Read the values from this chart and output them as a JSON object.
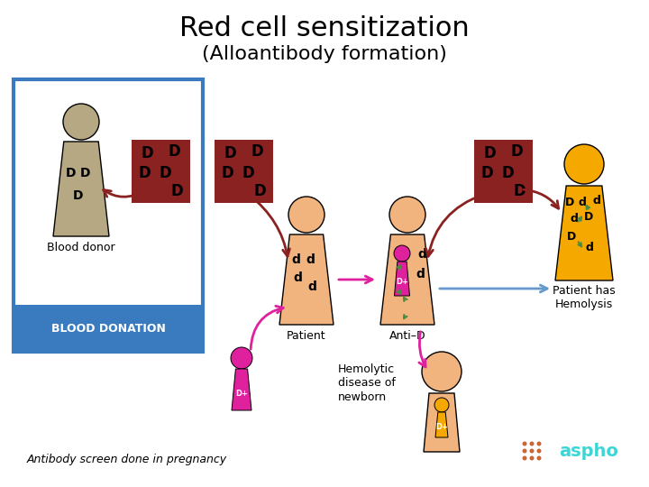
{
  "title": "Red cell sensitization",
  "subtitle": "(Alloantibody formation)",
  "title_fontsize": 22,
  "subtitle_fontsize": 16,
  "bg_color": "#ffffff",
  "donor_body_color": "#b5a882",
  "patient_body_color": "#f2b47e",
  "yellow_body_color": "#f5a800",
  "pink_body_color": "#e0219e",
  "rbc_box_color": "#8b2222",
  "blood_donation_bg": "#3a7bbf",
  "box_border_color": "#3a7bbf",
  "annotation_bottom": "Antibody screen done in pregnancy",
  "aspho_color": "#3dd6d6",
  "dot_color": "#cc6633",
  "green_color": "#4a8c3f",
  "arrow_dark_red": "#8b2222",
  "arrow_pink": "#e0219e",
  "arrow_blue": "#6699cc"
}
